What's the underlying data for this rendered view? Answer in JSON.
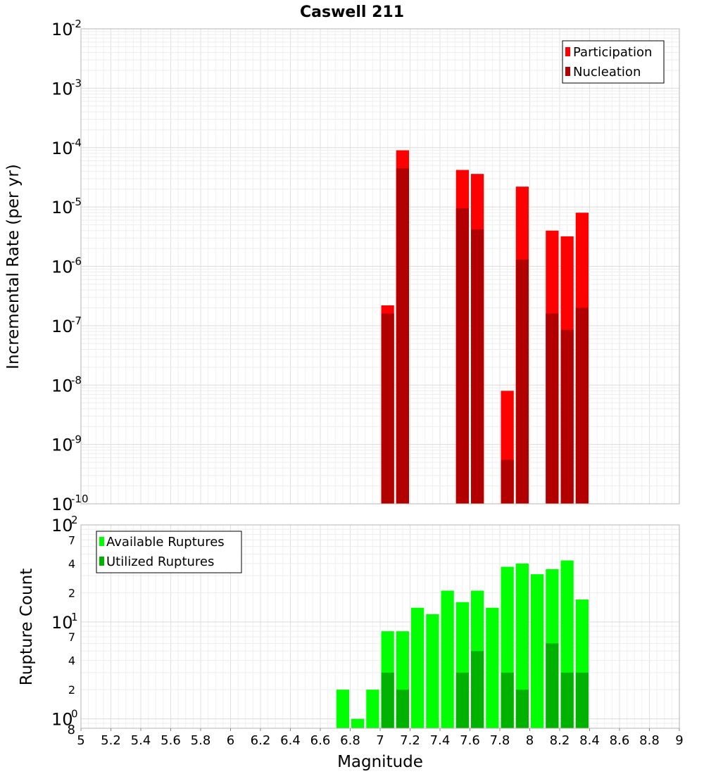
{
  "chart_data": [
    {
      "id": "top",
      "type": "bar",
      "title": "Caswell 211",
      "xlabel": "",
      "ylabel": "Incremental Rate (per yr)",
      "yscale": "log",
      "xlim": [
        5,
        9
      ],
      "ylim": [
        1e-10,
        0.01
      ],
      "grid": true,
      "legend_position": "top-right",
      "y_major_ticks": [
        {
          "base": "10",
          "exp": "-10",
          "value": 1e-10
        },
        {
          "base": "10",
          "exp": "-9",
          "value": 1e-09
        },
        {
          "base": "10",
          "exp": "-8",
          "value": 1e-08
        },
        {
          "base": "10",
          "exp": "-7",
          "value": 1e-07
        },
        {
          "base": "10",
          "exp": "-6",
          "value": 1e-06
        },
        {
          "base": "10",
          "exp": "-5",
          "value": 1e-05
        },
        {
          "base": "10",
          "exp": "-4",
          "value": 0.0001
        },
        {
          "base": "10",
          "exp": "-3",
          "value": 0.001
        },
        {
          "base": "10",
          "exp": "-2",
          "value": 0.01
        }
      ],
      "series": [
        {
          "name": "Participation",
          "color": "#ff0000",
          "x": [
            7.05,
            7.15,
            7.55,
            7.65,
            7.85,
            7.95,
            8.15,
            8.25,
            8.35
          ],
          "values": [
            2.2e-07,
            9e-05,
            4.2e-05,
            3.6e-05,
            8e-09,
            2.2e-05,
            4e-06,
            3.2e-06,
            8e-06
          ]
        },
        {
          "name": "Nucleation",
          "color": "#b20000",
          "x": [
            7.05,
            7.15,
            7.55,
            7.65,
            7.85,
            7.95,
            8.15,
            8.25,
            8.35
          ],
          "values": [
            1.6e-07,
            4.5e-05,
            9.5e-06,
            4.2e-06,
            5.5e-10,
            1.3e-06,
            1.6e-07,
            8.5e-08,
            2e-07
          ]
        }
      ]
    },
    {
      "id": "bottom",
      "type": "bar",
      "title": "",
      "xlabel": "Magnitude",
      "ylabel": "Rupture Count",
      "yscale": "log",
      "xlim": [
        5,
        9
      ],
      "ylim": [
        0.8,
        100
      ],
      "grid": true,
      "legend_position": "top-left",
      "x_ticks": [
        "5",
        "5.2",
        "5.4",
        "5.6",
        "5.8",
        "6",
        "6.2",
        "6.4",
        "6.6",
        "6.8",
        "7",
        "7.2",
        "7.4",
        "7.6",
        "7.8",
        "8",
        "8.2",
        "8.4",
        "8.6",
        "8.8",
        "9"
      ],
      "y_major_ticks": [
        {
          "base": "10",
          "exp": "0",
          "value": 1
        },
        {
          "base": "10",
          "exp": "1",
          "value": 10
        },
        {
          "base": "10",
          "exp": "2",
          "value": 100
        }
      ],
      "y_minor_ticks": [
        {
          "label": "8",
          "value": 0.8
        },
        {
          "label": "2",
          "value": 2
        },
        {
          "label": "4",
          "value": 4
        },
        {
          "label": "7",
          "value": 7
        },
        {
          "label": "2",
          "value": 20
        },
        {
          "label": "4",
          "value": 40
        },
        {
          "label": "7",
          "value": 70
        }
      ],
      "series": [
        {
          "name": "Available Ruptures",
          "color": "#00ff00",
          "x": [
            6.75,
            6.85,
            6.95,
            7.05,
            7.15,
            7.25,
            7.35,
            7.45,
            7.55,
            7.65,
            7.75,
            7.85,
            7.95,
            8.05,
            8.15,
            8.25,
            8.35
          ],
          "values": [
            2,
            1,
            2,
            8,
            8,
            14,
            12,
            21,
            16,
            21,
            14,
            37,
            40,
            31,
            35,
            43,
            17
          ]
        },
        {
          "name": "Utilized Ruptures",
          "color": "#00b200",
          "x": [
            7.05,
            7.15,
            7.55,
            7.65,
            7.85,
            7.95,
            8.15,
            8.25,
            8.35
          ],
          "values": [
            3,
            2,
            3,
            5,
            3,
            2,
            6,
            3,
            3
          ]
        }
      ]
    }
  ]
}
